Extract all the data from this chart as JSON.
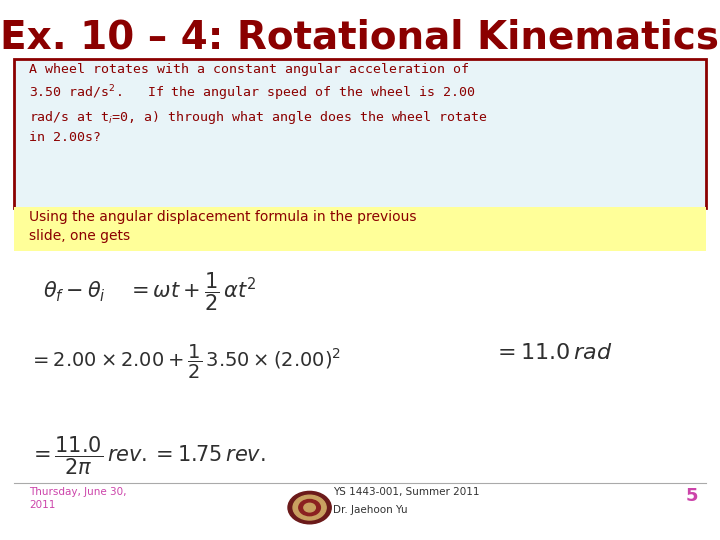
{
  "title": "Ex. 10 – 4: Rotational Kinematics",
  "title_color": "#8B0000",
  "title_fontsize": 28,
  "bg_color": "#FFFFFF",
  "problem_box_color": "#8B0000",
  "problem_bg_color": "#E8F4F8",
  "highlight_bg_color": "#FFFF99",
  "solution_color": "#8B0000",
  "eq_color": "#2F2F2F",
  "footer_left_line1": "Thursday, June 30,",
  "footer_left_line2": "2011",
  "footer_center1": "YS 1443-001, Summer 2011",
  "footer_center2": "Dr. Jaehoon Yu",
  "footer_page": "5",
  "footer_color": "#CC44AA"
}
